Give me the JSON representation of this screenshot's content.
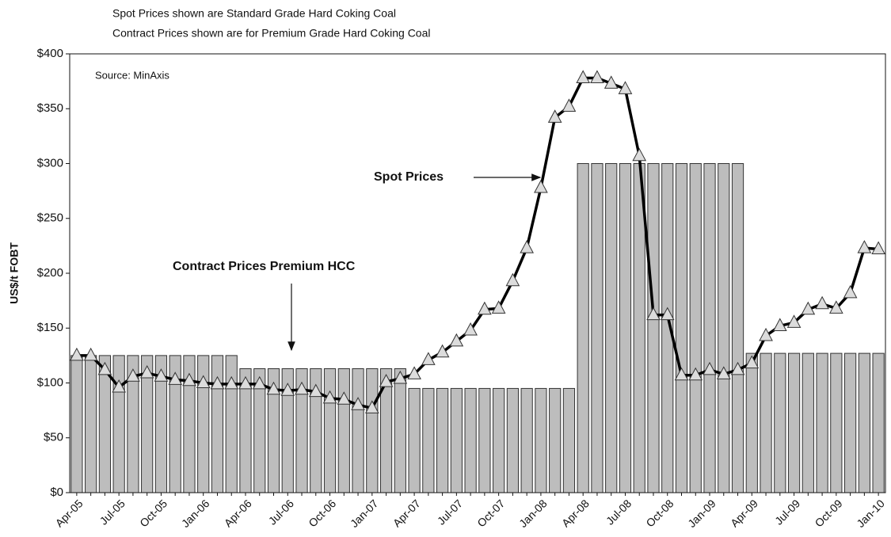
{
  "chart_data": {
    "type": "bar_line",
    "notes": [
      "Spot Prices shown are Standard Grade Hard Coking Coal",
      "Contract Prices shown are for Premium Grade Hard Coking Coal"
    ],
    "source": "Source: MinAxis",
    "y_label": "US$/t FOBT",
    "annotations": [
      "Spot Prices",
      "Contract Prices Premium HCC"
    ],
    "categories": [
      "Apr-05",
      null,
      null,
      "Jul-05",
      null,
      null,
      "Oct-05",
      null,
      null,
      "Jan-06",
      null,
      null,
      "Apr-06",
      null,
      null,
      "Jul-06",
      null,
      null,
      "Oct-06",
      null,
      null,
      "Jan-07",
      null,
      null,
      "Apr-07",
      null,
      null,
      "Jul-07",
      null,
      null,
      "Oct-07",
      null,
      null,
      "Jan-08",
      null,
      null,
      "Apr-08",
      null,
      null,
      "Jul-08",
      null,
      null,
      "Oct-08",
      null,
      null,
      "Jan-09",
      null,
      null,
      "Apr-09",
      null,
      null,
      "Jul-09",
      null,
      null,
      "Oct-09",
      null,
      null,
      "Jan-10"
    ],
    "series": [
      {
        "type": "bar",
        "color": "#bdbdbd",
        "values": [
          125,
          125,
          125,
          125,
          125,
          125,
          125,
          125,
          125,
          125,
          125,
          125,
          113,
          113,
          113,
          113,
          113,
          113,
          113,
          113,
          113,
          113,
          113,
          113,
          95,
          95,
          95,
          95,
          95,
          95,
          95,
          95,
          95,
          95,
          95,
          95,
          300,
          300,
          300,
          300,
          300,
          300,
          300,
          300,
          300,
          300,
          300,
          300,
          127,
          127,
          127,
          127,
          127,
          127,
          127,
          127,
          127,
          127
        ]
      },
      {
        "type": "line",
        "color": "#000000",
        "marker_color": "#dcdcdc",
        "values": [
          125,
          125,
          112,
          96,
          106,
          109,
          106,
          103,
          102,
          100,
          99,
          99,
          99,
          99,
          94,
          93,
          94,
          92,
          86,
          85,
          80,
          77,
          101,
          104,
          108,
          121,
          128,
          138,
          148,
          167,
          168,
          193,
          223,
          278,
          342,
          352,
          378,
          378,
          373,
          368,
          307,
          162,
          162,
          107,
          107,
          112,
          108,
          112,
          118,
          143,
          152,
          155,
          167,
          172,
          168,
          182,
          223,
          222
        ]
      }
    ],
    "ylim": [
      0,
      400
    ],
    "yticks": [
      {
        "value": 0,
        "label": "$0"
      },
      {
        "value": 50,
        "label": "$50"
      },
      {
        "value": 100,
        "label": "$100"
      },
      {
        "value": 150,
        "label": "$150"
      },
      {
        "value": 200,
        "label": "$200"
      },
      {
        "value": 250,
        "label": "$250"
      },
      {
        "value": 300,
        "label": "$300"
      },
      {
        "value": 350,
        "label": "$350"
      },
      {
        "value": 400,
        "label": "$400"
      }
    ]
  }
}
